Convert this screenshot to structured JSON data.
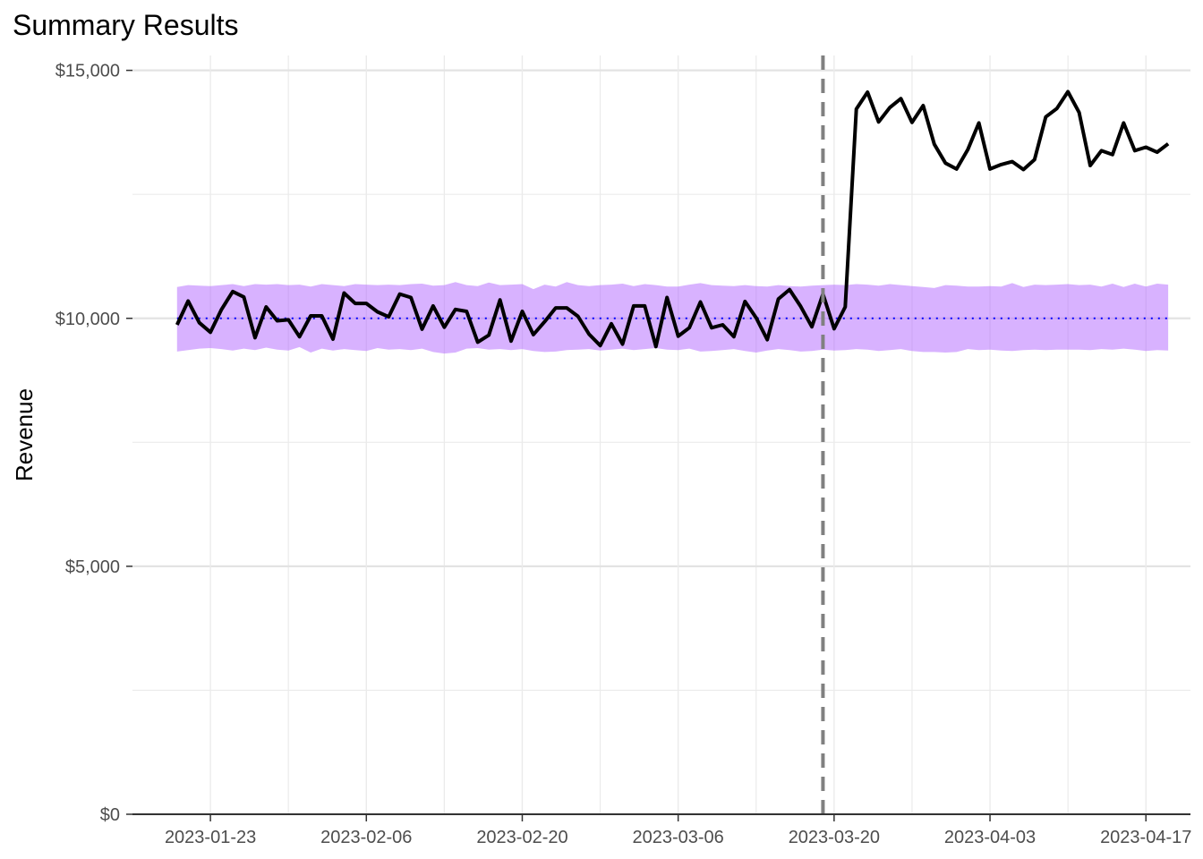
{
  "chart_data": {
    "type": "line",
    "title": "Summary Results",
    "xlabel": "",
    "ylabel": "Revenue",
    "ylim": [
      0,
      15000
    ],
    "xlim": [
      "2023-01-16",
      "2023-04-21"
    ],
    "y_major_ticks": [
      0,
      5000,
      10000,
      15000
    ],
    "y_tick_labels": [
      "$0",
      "$5,000",
      "$10,000",
      "$15,000"
    ],
    "y_minor_ticks": [
      2500,
      7500,
      12500
    ],
    "x_ticks": [
      "2023-01-23",
      "2023-02-06",
      "2023-02-20",
      "2023-03-06",
      "2023-03-20",
      "2023-04-03",
      "2023-04-17"
    ],
    "x_minor_ticks": [
      "2023-01-30",
      "2023-02-13",
      "2023-02-27",
      "2023-03-13",
      "2023-03-27",
      "2023-04-10"
    ],
    "grid": true,
    "intervention_date": "2023-03-19",
    "start_date": "2023-01-20",
    "series": [
      {
        "role": "observed",
        "color": "#000000",
        "values": [
          9870,
          10350,
          9910,
          9720,
          10180,
          10540,
          10430,
          9610,
          10230,
          9950,
          9970,
          9630,
          10050,
          10050,
          9580,
          10510,
          10300,
          10300,
          10130,
          10030,
          10490,
          10420,
          9780,
          10250,
          9820,
          10180,
          10140,
          9520,
          9660,
          10370,
          9540,
          10140,
          9670,
          9930,
          10210,
          10210,
          10040,
          9680,
          9450,
          9890,
          9480,
          10250,
          10250,
          9430,
          10420,
          9640,
          9810,
          10330,
          9810,
          9870,
          9630,
          10340,
          10010,
          9570,
          10390,
          10580,
          10240,
          9830,
          10490,
          9790,
          10230,
          14220,
          14560,
          13960,
          14250,
          14430,
          13950,
          14290,
          13510,
          13130,
          13010,
          13400,
          13940,
          13010,
          13100,
          13160,
          13000,
          13200,
          14060,
          14230,
          14570,
          14150,
          13080,
          13380,
          13300,
          13940,
          13380,
          13450,
          13350,
          13520
        ]
      },
      {
        "role": "baseline",
        "color": "#0000ff",
        "values": [
          10000,
          10000,
          10000,
          10000,
          10000,
          10000,
          10000,
          10000,
          10000,
          10000,
          10000,
          10000,
          10000,
          10000,
          10000,
          10000,
          10000,
          10000,
          10000,
          10000,
          10000,
          10000,
          10000,
          10000,
          10000,
          10000,
          10000,
          10000,
          10000,
          10000,
          10000,
          10000,
          10000,
          10000,
          10000,
          10000,
          10000,
          10000,
          10000,
          10000,
          10000,
          10000,
          10000,
          10000,
          10000,
          10000,
          10000,
          10000,
          10000,
          10000,
          10000,
          10000,
          10000,
          10000,
          10000,
          10000,
          10000,
          10000,
          10000,
          10000,
          10000,
          10000,
          10000,
          10000,
          10000,
          10000,
          10000,
          10000,
          10000,
          10000,
          10000,
          10000,
          10000,
          10000,
          10000,
          10000,
          10000,
          10000,
          10000,
          10000,
          10000,
          10000,
          10000,
          10000,
          10000,
          10000,
          10000,
          10000,
          10000,
          10000
        ]
      },
      {
        "role": "interval",
        "color": "#b266ff",
        "lower": [
          9330,
          9360,
          9390,
          9400,
          9380,
          9350,
          9390,
          9360,
          9410,
          9370,
          9350,
          9420,
          9310,
          9390,
          9350,
          9380,
          9360,
          9340,
          9400,
          9370,
          9380,
          9360,
          9390,
          9320,
          9290,
          9310,
          9390,
          9400,
          9370,
          9380,
          9360,
          9380,
          9340,
          9320,
          9330,
          9360,
          9370,
          9380,
          9350,
          9370,
          9390,
          9360,
          9380,
          9400,
          9370,
          9360,
          9390,
          9330,
          9340,
          9360,
          9380,
          9340,
          9310,
          9350,
          9380,
          9360,
          9330,
          9340,
          9370,
          9350,
          9360,
          9380,
          9370,
          9340,
          9360,
          9380,
          9340,
          9320,
          9320,
          9310,
          9320,
          9380,
          9360,
          9370,
          9350,
          9340,
          9360,
          9370,
          9360,
          9370,
          9370,
          9370,
          9360,
          9380,
          9370,
          9390,
          9370,
          9340,
          9360,
          9350
        ],
        "upper": [
          10630,
          10670,
          10660,
          10650,
          10670,
          10690,
          10650,
          10690,
          10680,
          10690,
          10670,
          10680,
          10640,
          10690,
          10670,
          10650,
          10690,
          10680,
          10670,
          10680,
          10670,
          10690,
          10700,
          10660,
          10670,
          10730,
          10670,
          10650,
          10720,
          10670,
          10680,
          10690,
          10590,
          10680,
          10640,
          10730,
          10670,
          10650,
          10670,
          10680,
          10700,
          10650,
          10690,
          10670,
          10640,
          10640,
          10680,
          10710,
          10670,
          10660,
          10650,
          10670,
          10650,
          10640,
          10670,
          10650,
          10640,
          10660,
          10670,
          10680,
          10670,
          10690,
          10680,
          10660,
          10690,
          10670,
          10650,
          10630,
          10610,
          10670,
          10660,
          10640,
          10640,
          10650,
          10640,
          10710,
          10630,
          10680,
          10670,
          10680,
          10690,
          10670,
          10680,
          10640,
          10700,
          10630,
          10700,
          10640,
          10700,
          10680
        ]
      }
    ]
  }
}
